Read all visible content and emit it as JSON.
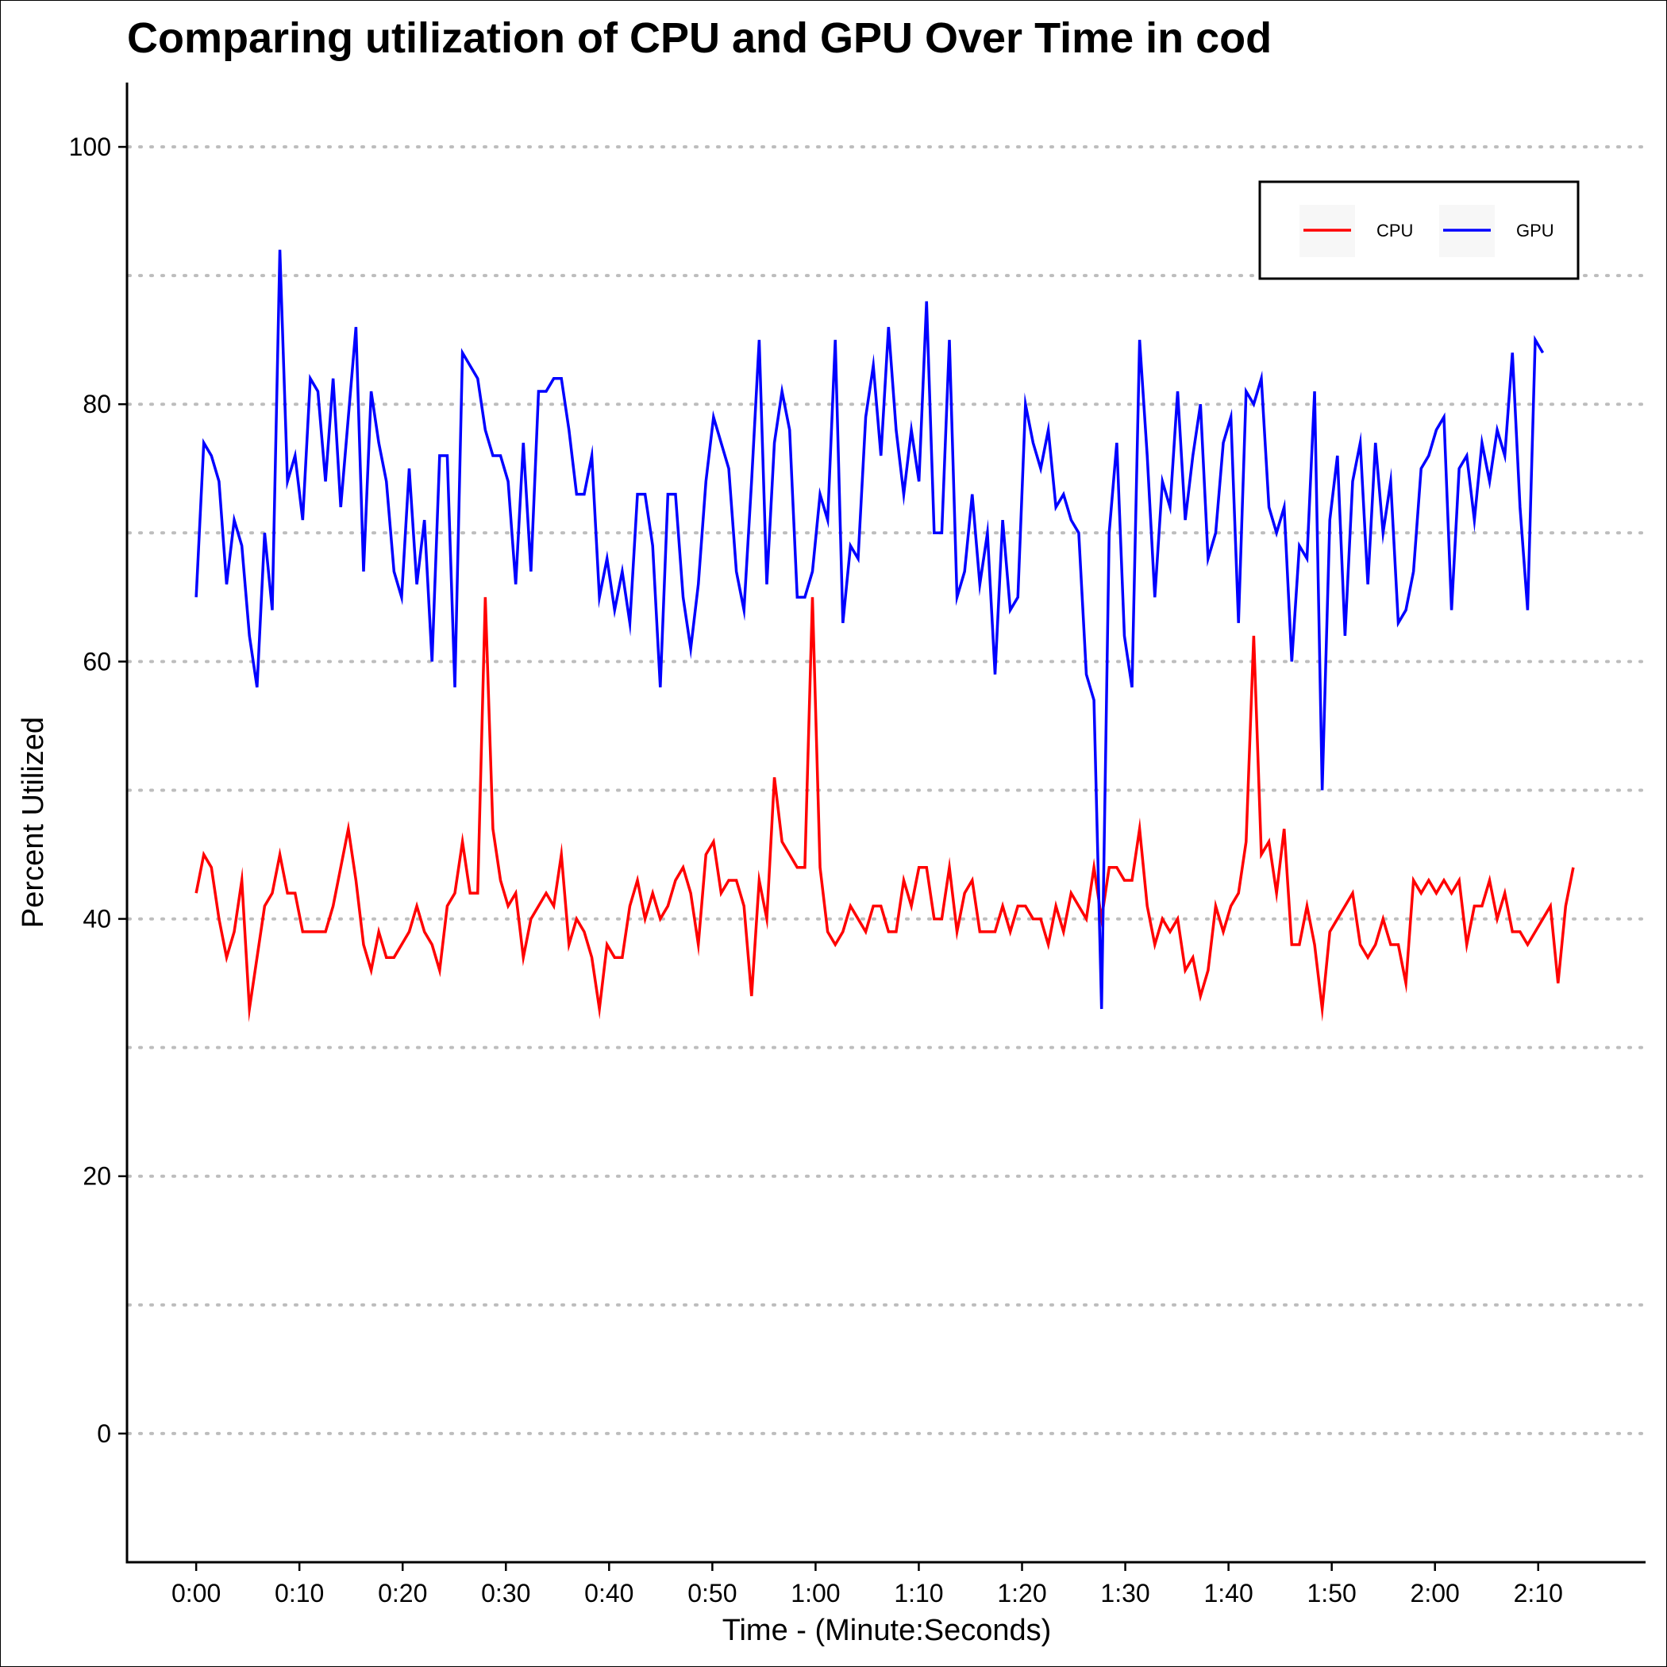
{
  "chart_data": {
    "type": "line",
    "title": "Comparing utilization of CPU and GPU Over Time in cod",
    "xlabel": "Time - (Minute:Seconds)",
    "ylabel": "Percent Utilized",
    "ylim": [
      -10,
      105
    ],
    "y_ticks": [
      0,
      20,
      40,
      60,
      80,
      100
    ],
    "y_tick_labels": [
      "0",
      "20",
      "40",
      "60",
      "80",
      "100"
    ],
    "y_minor_gridlines": [
      10,
      30,
      50,
      70,
      90
    ],
    "xlim_seconds": [
      -6.7,
      140.4
    ],
    "x_ticks_seconds": [
      0,
      10,
      20,
      30,
      40,
      50,
      60,
      70,
      80,
      90,
      100,
      110,
      120,
      130
    ],
    "x_tick_labels": [
      "0:00",
      "0:10",
      "0:20",
      "0:30",
      "0:40",
      "0:50",
      "1:00",
      "1:10",
      "1:20",
      "1:30",
      "1:40",
      "1:50",
      "2:00",
      "2:10"
    ],
    "grid": "horizontal dotted",
    "legend_position": "top-right",
    "sample_interval_seconds": 0.737,
    "series": [
      {
        "name": "CPU",
        "color": "#ff0000",
        "values": [
          42,
          45,
          44,
          40,
          37,
          39,
          43,
          33,
          37,
          41,
          42,
          45,
          42,
          42,
          39,
          39,
          39,
          39,
          41,
          44,
          47,
          43,
          38,
          36,
          39,
          37,
          37,
          38,
          39,
          41,
          39,
          38,
          36,
          41,
          42,
          46,
          42,
          42,
          65,
          47,
          43,
          41,
          42,
          37,
          40,
          41,
          42,
          41,
          45,
          38,
          40,
          39,
          37,
          33,
          38,
          37,
          37,
          41,
          43,
          40,
          42,
          40,
          41,
          43,
          44,
          42,
          38,
          45,
          46,
          42,
          43,
          43,
          41,
          34,
          43,
          40,
          51,
          46,
          45,
          44,
          44,
          65,
          44,
          39,
          38,
          39,
          41,
          40,
          39,
          41,
          41,
          39,
          39,
          43,
          41,
          44,
          44,
          40,
          40,
          44,
          39,
          42,
          43,
          39,
          39,
          39,
          41,
          39,
          41,
          41,
          40,
          40,
          38,
          41,
          39,
          42,
          41,
          40,
          44,
          40,
          44,
          44,
          43,
          43,
          47,
          41,
          38,
          40,
          39,
          40,
          36,
          37,
          34,
          36,
          41,
          39,
          41,
          42,
          46,
          62,
          45,
          46,
          42,
          47,
          38,
          38,
          41,
          38,
          33,
          39,
          40,
          41,
          42,
          38,
          37,
          38,
          40,
          38,
          38,
          35,
          43,
          42,
          43,
          42,
          43,
          42,
          43,
          38,
          41,
          41,
          43,
          40,
          42,
          39,
          39,
          38,
          39,
          40,
          41,
          35,
          41,
          44
        ]
      },
      {
        "name": "GPU",
        "color": "#0000ff",
        "values": [
          65,
          77,
          76,
          74,
          66,
          71,
          69,
          62,
          58,
          70,
          64,
          92,
          74,
          76,
          71,
          82,
          81,
          74,
          82,
          72,
          79,
          86,
          67,
          81,
          77,
          74,
          67,
          65,
          75,
          66,
          71,
          60,
          76,
          76,
          58,
          84,
          83,
          82,
          78,
          76,
          76,
          74,
          66,
          77,
          67,
          81,
          81,
          82,
          82,
          78,
          73,
          73,
          76,
          65,
          68,
          64,
          67,
          63,
          73,
          73,
          69,
          58,
          73,
          73,
          65,
          61,
          66,
          74,
          79,
          77,
          75,
          67,
          64,
          74,
          85,
          66,
          77,
          81,
          78,
          65,
          65,
          67,
          73,
          71,
          85,
          63,
          69,
          68,
          79,
          83,
          76,
          86,
          78,
          73,
          78,
          74,
          88,
          70,
          70,
          85,
          65,
          67,
          73,
          66,
          70,
          59,
          71,
          64,
          65,
          80,
          77,
          75,
          78,
          72,
          73,
          71,
          70,
          59,
          57,
          33,
          70,
          77,
          62,
          58,
          85,
          76,
          65,
          74,
          72,
          81,
          71,
          76,
          80,
          68,
          70,
          77,
          79,
          63,
          81,
          80,
          82,
          72,
          70,
          72,
          60,
          69,
          68,
          81,
          50,
          71,
          76,
          62,
          74,
          77,
          66,
          77,
          70,
          74,
          63,
          64,
          67,
          75,
          76,
          78,
          79,
          64,
          75,
          76,
          71,
          77,
          74,
          78,
          76,
          84,
          72,
          64,
          85,
          84
        ]
      }
    ]
  }
}
